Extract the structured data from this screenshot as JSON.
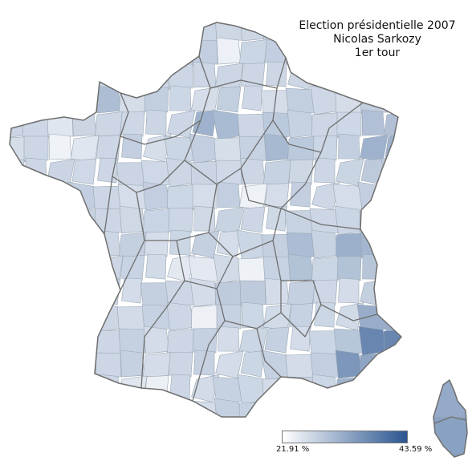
{
  "title": {
    "line1": "Election présidentielle 2007",
    "line2": "Nicolas Sarkozy",
    "line3": "1er tour"
  },
  "legend": {
    "min_label": "21.91 %",
    "max_label": "43.59 %",
    "min_value": 21.91,
    "max_value": 43.59,
    "color_low": "#ffffff",
    "color_high": "#2a5590"
  },
  "map": {
    "region": "France (départements)",
    "shading": "choropleth"
  }
}
